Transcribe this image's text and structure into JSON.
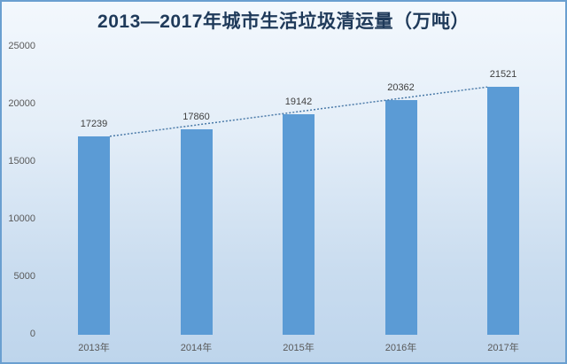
{
  "title": "2013—2017年城市生活垃圾清运量（万吨）",
  "chart_data": {
    "type": "bar",
    "title": "2013—2017年城市生活垃圾清运量（万吨）",
    "xlabel": "",
    "ylabel": "",
    "categories": [
      "2013年",
      "2014年",
      "2015年",
      "2016年",
      "2017年"
    ],
    "values": [
      17239,
      17860,
      19142,
      20362,
      21521
    ],
    "ylim": [
      0,
      25000
    ],
    "yticks": [
      "0",
      "5000",
      "10000",
      "15000",
      "20000",
      "25000"
    ],
    "grid": false,
    "legend": "none",
    "trendline": {
      "type": "linear",
      "style": "dotted"
    },
    "colors": {
      "bar": "#5b9bd5",
      "trendline": "#4a7aa8"
    }
  },
  "value_labels": [
    "17239",
    "17860",
    "19142",
    "20362",
    "21521"
  ]
}
